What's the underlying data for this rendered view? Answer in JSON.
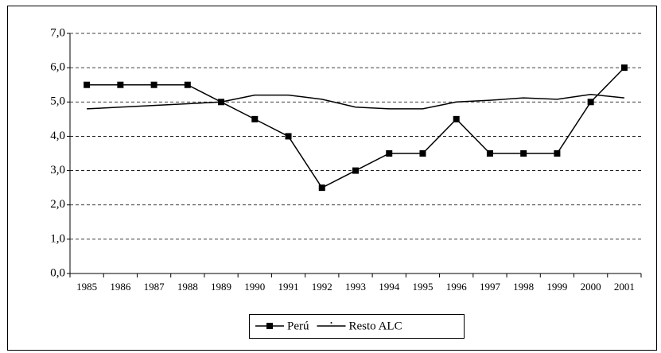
{
  "chart_data": {
    "type": "line",
    "categories": [
      "1985",
      "1986",
      "1987",
      "1988",
      "1989",
      "1990",
      "1991",
      "1992",
      "1993",
      "1994",
      "1995",
      "1996",
      "1997",
      "1998",
      "1999",
      "2000",
      "2001"
    ],
    "series": [
      {
        "name": "Perú",
        "color": "#000000",
        "marker": "square",
        "values": [
          5.5,
          5.5,
          5.5,
          5.5,
          5.0,
          4.5,
          4.0,
          2.5,
          3.0,
          3.5,
          3.5,
          4.5,
          3.5,
          3.5,
          3.5,
          5.0,
          6.0
        ]
      },
      {
        "name": "Resto ALC",
        "color": "#000000",
        "marker": "none",
        "values": [
          4.8,
          4.85,
          4.9,
          4.95,
          5.0,
          5.2,
          5.2,
          5.08,
          4.85,
          4.8,
          4.8,
          5.0,
          5.05,
          5.12,
          5.08,
          5.22,
          5.12
        ]
      }
    ],
    "ylim": [
      0,
      7
    ],
    "yticks": [
      {
        "value": 0,
        "label": "0,0"
      },
      {
        "value": 1,
        "label": "1,0"
      },
      {
        "value": 2,
        "label": "2,0"
      },
      {
        "value": 3,
        "label": "3,0"
      },
      {
        "value": 4,
        "label": "4,0"
      },
      {
        "value": 5,
        "label": "5,0"
      },
      {
        "value": 6,
        "label": "6,0"
      },
      {
        "value": 7,
        "label": "7,0"
      }
    ],
    "grid": true,
    "legend": "bottom"
  }
}
